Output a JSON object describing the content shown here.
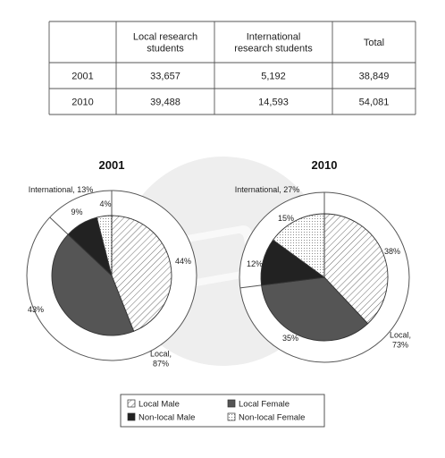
{
  "table": {
    "headers": [
      "",
      "Local research\nstudents",
      "International\nresearch students",
      "Total"
    ],
    "rows": [
      [
        "2001",
        "33,657",
        "5,192",
        "38,849"
      ],
      [
        "2010",
        "39,488",
        "14,593",
        "54,081"
      ]
    ]
  },
  "chart_data": [
    {
      "type": "pie",
      "title": "2001",
      "inner_slices": [
        {
          "category": "Local Male",
          "value": 44,
          "label": "44%"
        },
        {
          "category": "Local Female",
          "value": 43,
          "label": "43%"
        },
        {
          "category": "Non-local Male",
          "value": 9,
          "label": "9%"
        },
        {
          "category": "Non-local Female",
          "value": 4,
          "label": "4%"
        }
      ],
      "outer_ring": [
        {
          "label": "Local,\n87%",
          "value": 87
        },
        {
          "label": "International, 13%",
          "value": 13
        }
      ]
    },
    {
      "type": "pie",
      "title": "2010",
      "inner_slices": [
        {
          "category": "Local Male",
          "value": 38,
          "label": "38%"
        },
        {
          "category": "Local Female",
          "value": 35,
          "label": "35%"
        },
        {
          "category": "Non-local Male",
          "value": 12,
          "label": "12%"
        },
        {
          "category": "Non-local Female",
          "value": 15,
          "label": "15%"
        }
      ],
      "outer_ring": [
        {
          "label": "Local,\n73%",
          "value": 73
        },
        {
          "label": "International, 27%",
          "value": 27
        }
      ]
    }
  ],
  "legend": {
    "entries": [
      {
        "label": "Local Male",
        "style": "hatch"
      },
      {
        "label": "Local Female",
        "style": "dark-gray",
        "color": "#555555"
      },
      {
        "label": "Non-local Male",
        "style": "black",
        "color": "#222222"
      },
      {
        "label": "Non-local Female",
        "style": "dotted"
      }
    ],
    "placement": "bottom-center"
  },
  "watermark": {
    "text": ""
  }
}
